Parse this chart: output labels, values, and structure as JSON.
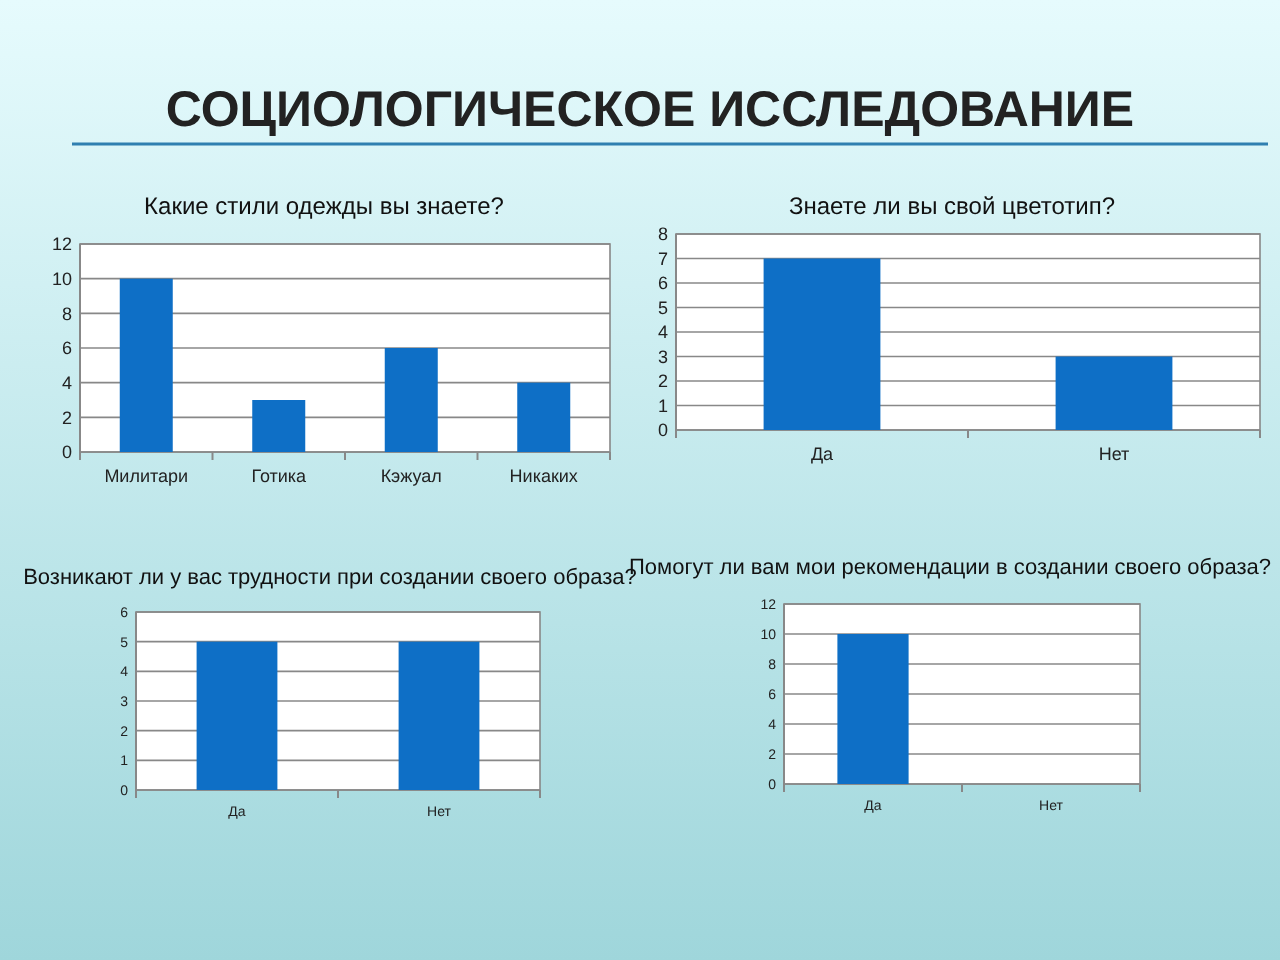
{
  "chart_data": [
    {
      "type": "other",
      "title": "СОЦИОЛОГИЧЕСКОЕ ИССЛЕДОВАНИЕ"
    },
    {
      "type": "bar",
      "title": "Какие стили одежды вы знаете?",
      "categories": [
        "Милитари",
        "Готика",
        "Кэжуал",
        "Никаких"
      ],
      "values": [
        10,
        3,
        6,
        4
      ],
      "color": "#0e6fc6",
      "ylim": [
        0,
        12
      ],
      "yticks": [
        0,
        2,
        4,
        6,
        8,
        10,
        12
      ],
      "grid": "y"
    },
    {
      "type": "bar",
      "title": "Знаете ли вы свой цветотип?",
      "categories": [
        "Да",
        "Нет"
      ],
      "values": [
        7,
        3
      ],
      "color": "#0e6fc6",
      "ylim": [
        0,
        8
      ],
      "yticks": [
        0,
        1,
        2,
        3,
        4,
        5,
        6,
        7,
        8
      ],
      "grid": "y"
    },
    {
      "type": "bar",
      "title": "Возникают ли у вас трудности при создании своего образа?",
      "categories": [
        "Да",
        "Нет"
      ],
      "values": [
        5,
        5
      ],
      "color": "#0e6fc6",
      "ylim": [
        0,
        6
      ],
      "yticks": [
        0,
        1,
        2,
        3,
        4,
        5,
        6
      ],
      "grid": "y"
    },
    {
      "type": "bar",
      "title": "Помогут ли вам мои рекомендации в создании своего образа?",
      "categories": [
        "Да",
        "Нет"
      ],
      "values": [
        10,
        0
      ],
      "color": "#0e6fc6",
      "ylim": [
        0,
        12
      ],
      "yticks": [
        0,
        2,
        4,
        6,
        8,
        10,
        12
      ],
      "grid": "y"
    }
  ]
}
